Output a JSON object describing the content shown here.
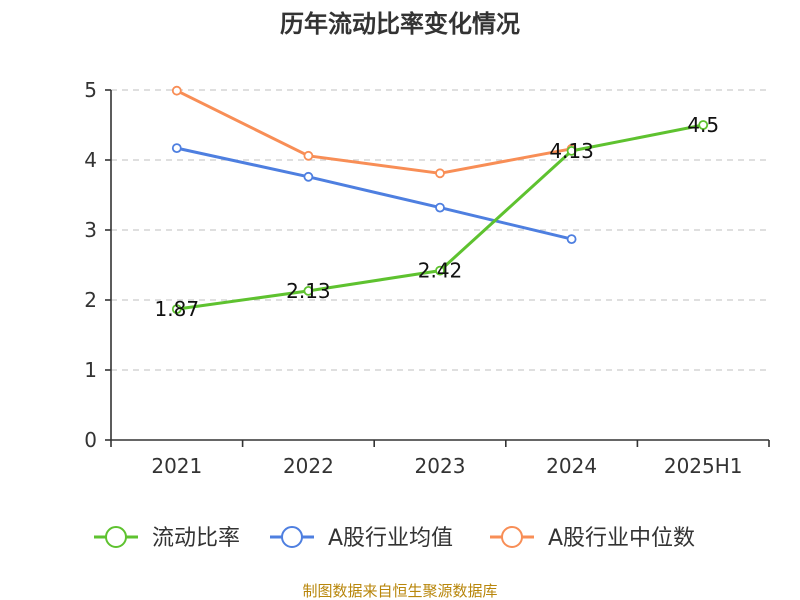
{
  "chart_data": {
    "type": "line",
    "title": "历年流动比率变化情况",
    "categories": [
      "2021",
      "2022",
      "2023",
      "2024",
      "2025H1"
    ],
    "ylim": [
      0,
      5
    ],
    "yticks": [
      0,
      1,
      2,
      3,
      4,
      5
    ],
    "grid": true,
    "legend_position": "bottom",
    "series": [
      {
        "name": "流动比率",
        "color": "#5ec22f",
        "values": [
          1.87,
          2.13,
          2.42,
          4.13,
          4.5
        ],
        "labels": [
          "1.87",
          "2.13",
          "2.42",
          "4.13",
          "4.5"
        ]
      },
      {
        "name": "A股行业均值",
        "color": "#4e7fe0",
        "values": [
          4.17,
          3.76,
          3.32,
          2.87,
          null
        ]
      },
      {
        "name": "A股行业中位数",
        "color": "#f88e56",
        "values": [
          4.99,
          4.06,
          3.81,
          4.16,
          null
        ]
      }
    ],
    "source": "制图数据来自恒生聚源数据库"
  }
}
